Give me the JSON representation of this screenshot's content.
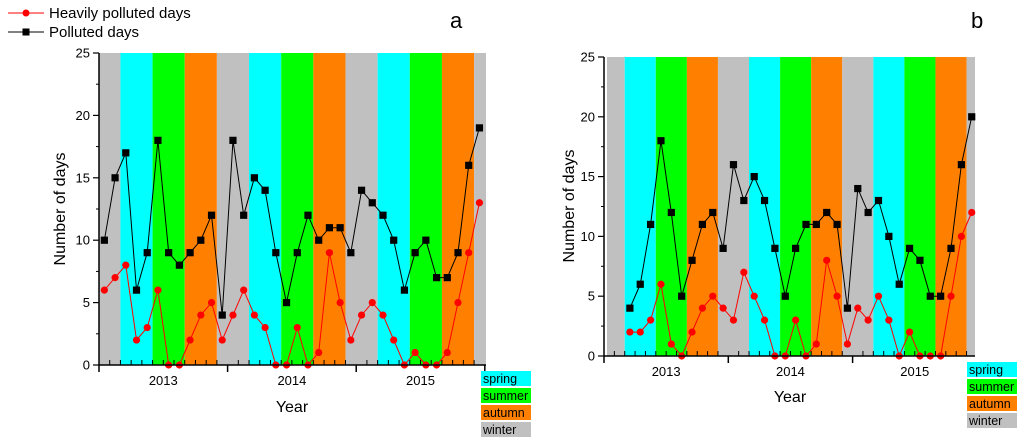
{
  "legend": {
    "series": [
      {
        "name": "Heavily polluted days",
        "color": "#ff0000",
        "marker": "circle"
      },
      {
        "name": "Polluted days",
        "color": "#000000",
        "marker": "square"
      }
    ]
  },
  "season_legend": [
    {
      "label": "spring",
      "color": "#00ffff"
    },
    {
      "label": "summer",
      "color": "#00ff00"
    },
    {
      "label": "autumn",
      "color": "#ff8000"
    },
    {
      "label": "winter",
      "color": "#c0c0c0"
    }
  ],
  "chart_data": [
    {
      "panel": "a",
      "type": "line",
      "title": "a",
      "xlabel": "Year",
      "ylabel": "Number of days",
      "ylim": [
        0,
        25
      ],
      "yticks": [
        "0",
        "5",
        "10",
        "15",
        "20",
        "25"
      ],
      "xticks": [
        "2013",
        "2014",
        "2015"
      ],
      "x_range": "Jan 2013 – Dec 2015 (monthly)",
      "start_month_index": 0,
      "background_bands": "seasonal (winter Dec–Feb, spring Mar–May, summer Jun–Aug, autumn Sep–Nov)",
      "series": [
        {
          "name": "Heavily polluted days",
          "color": "#ff0000",
          "values": [
            6,
            7,
            8,
            2,
            3,
            6,
            0,
            0,
            2,
            4,
            5,
            2,
            4,
            6,
            4,
            3,
            0,
            0,
            3,
            0,
            1,
            9,
            5,
            2,
            4,
            5,
            4,
            2,
            0,
            1,
            0,
            0,
            1,
            5,
            9,
            13
          ]
        },
        {
          "name": "Polluted days",
          "color": "#000000",
          "values": [
            10,
            15,
            17,
            6,
            9,
            18,
            9,
            8,
            9,
            10,
            12,
            4,
            18,
            12,
            15,
            14,
            9,
            5,
            9,
            12,
            10,
            11,
            11,
            9,
            14,
            13,
            12,
            10,
            6,
            9,
            10,
            7,
            7,
            9,
            16,
            19
          ]
        }
      ]
    },
    {
      "panel": "b",
      "type": "line",
      "title": "b",
      "xlabel": "Year",
      "ylabel": "Number of days",
      "ylim": [
        0,
        25
      ],
      "yticks": [
        "0",
        "5",
        "10",
        "15",
        "20",
        "25"
      ],
      "xticks": [
        "2013",
        "2014",
        "2015"
      ],
      "x_range": "Mar 2013 – Dec 2015 (monthly)",
      "start_month_index": 2,
      "background_bands": "seasonal (winter Dec–Feb, spring Mar–May, summer Jun–Aug, autumn Sep–Nov)",
      "series": [
        {
          "name": "Heavily polluted days",
          "color": "#ff0000",
          "values": [
            2,
            2,
            3,
            6,
            1,
            0,
            2,
            4,
            5,
            4,
            3,
            7,
            5,
            3,
            0,
            0,
            3,
            0,
            1,
            8,
            5,
            1,
            4,
            3,
            5,
            3,
            0,
            2,
            0,
            0,
            0,
            5,
            10,
            12
          ]
        },
        {
          "name": "Polluted days",
          "color": "#000000",
          "values": [
            4,
            6,
            11,
            18,
            12,
            5,
            8,
            11,
            12,
            9,
            16,
            13,
            15,
            13,
            9,
            5,
            9,
            11,
            11,
            12,
            11,
            4,
            14,
            12,
            13,
            10,
            6,
            9,
            8,
            5,
            5,
            9,
            16,
            20
          ]
        }
      ]
    }
  ]
}
